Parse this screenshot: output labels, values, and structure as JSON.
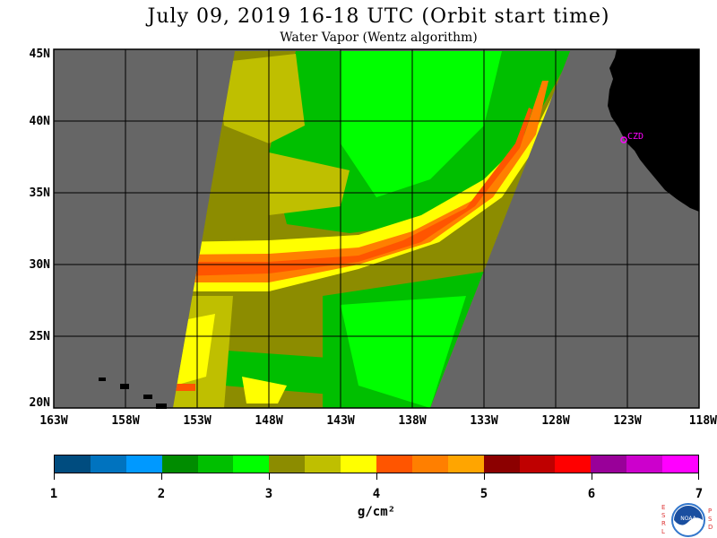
{
  "title": "July 09, 2019  16-18 UTC  (Orbit start time)",
  "subtitle": "Water Vapor (Wentz algorithm)",
  "map": {
    "lat_labels": [
      "45N",
      "40N",
      "35N",
      "30N",
      "25N",
      "20N"
    ],
    "lon_labels": [
      "163W",
      "158W",
      "153W",
      "148W",
      "143W",
      "138W",
      "133W",
      "128W",
      "123W",
      "118W"
    ],
    "station_label": "CZD",
    "colors": {
      "background": "#666666",
      "land": "#000000",
      "grid": "#000000",
      "station": "#ff00ff"
    }
  },
  "colorbar": {
    "labels": [
      "1",
      "2",
      "3",
      "4",
      "5",
      "6",
      "7"
    ],
    "units": "g/cm²",
    "colors": [
      "#004c7f",
      "#0073bf",
      "#0099ff",
      "#008c00",
      "#00bf00",
      "#00ff00",
      "#8c8c00",
      "#bfbf00",
      "#ffff00",
      "#ff5500",
      "#ff7f00",
      "#ffa500",
      "#8c0000",
      "#bf0000",
      "#ff0000",
      "#990099",
      "#cc00cc",
      "#ff00ff"
    ]
  },
  "logo": {
    "left_letters": "ESRL",
    "right_letters": "PSD",
    "name": "NOAA"
  }
}
